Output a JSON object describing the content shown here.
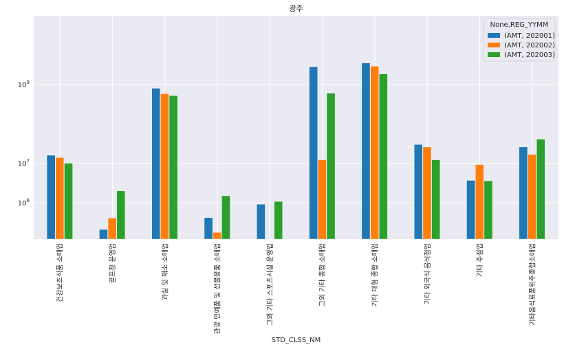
{
  "chart_data": {
    "type": "bar",
    "title": "광주",
    "xlabel": "STD_CLSS_NM",
    "ylabel": "",
    "yscale": "log",
    "ylim": [
      120000,
      55000000000
    ],
    "y_ticks": [
      {
        "value": 1000000,
        "base": "10",
        "exp": "6"
      },
      {
        "value": 10000000,
        "base": "10",
        "exp": "7"
      },
      {
        "value": 1000000000,
        "base": "10",
        "exp": "9"
      }
    ],
    "grid": true,
    "legend_title": "None,REG_YYMM",
    "legend_position": "top-right",
    "categories": [
      "건강보조식품 소매업",
      "골프장 운영업",
      "과실 및 채소 소매업",
      "관광 민예품 및 선물용품 소매업",
      "그외 기타 스포츠시설 운영업",
      "그외 기타 종합 소매업",
      "기타 대형 종합 소매업",
      "기타 외국식 음식점업",
      "기타 주점업",
      "기타음식료품위주종합소매업"
    ],
    "series": [
      {
        "name": "(AMT, 202001)",
        "color": "#1f77b4",
        "values": [
          16000000,
          210000,
          800000000,
          420000,
          920000,
          2800000000,
          3500000000,
          30000000,
          3700000,
          26000000
        ]
      },
      {
        "name": "(AMT, 202002)",
        "color": "#ff7f0e",
        "values": [
          14000000,
          410000,
          580000000,
          178000,
          null,
          12300000,
          2900000000,
          26000000,
          9300000,
          16800000
        ]
      },
      {
        "name": "(AMT, 202003)",
        "color": "#2ca02c",
        "values": [
          10000000,
          2000000,
          520000000,
          1500000,
          1080000,
          600000000,
          1850000000,
          12300000,
          3600000,
          41000000
        ]
      }
    ]
  }
}
